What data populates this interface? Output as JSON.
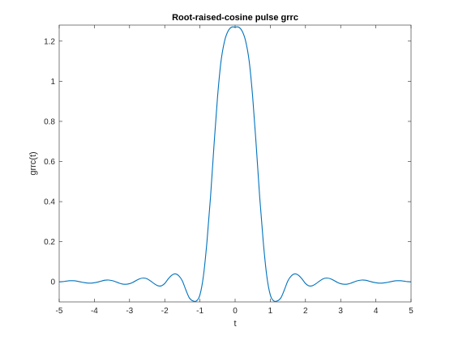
{
  "chart_data": {
    "type": "line",
    "title": "Root-raised-cosine pulse grrc",
    "xlabel": "t",
    "ylabel": "grrc(t)",
    "xlim": [
      -5,
      5
    ],
    "ylim": [
      -0.1,
      1.28
    ],
    "xticks": [
      -5,
      -4,
      -3,
      -2,
      -1,
      0,
      1,
      2,
      3,
      4,
      5
    ],
    "xtick_labels": [
      "-5",
      "-4",
      "-3",
      "-2",
      "-1",
      "0",
      "1",
      "2",
      "3",
      "4",
      "5"
    ],
    "yticks": [
      0,
      0.2,
      0.4,
      0.6,
      0.8,
      1,
      1.2
    ],
    "ytick_labels": [
      "0",
      "0.2",
      "0.4",
      "0.6",
      "0.8",
      "1",
      "1.2"
    ],
    "grid": false,
    "line_color": "#0072BD",
    "series": [
      {
        "x": [
          -5,
          -4.9,
          -4.8,
          -4.7,
          -4.6,
          -4.5,
          -4.4,
          -4.3,
          -4.2,
          -4.1,
          -4,
          -3.9,
          -3.8,
          -3.7,
          -3.6,
          -3.5,
          -3.4,
          -3.3,
          -3.2,
          -3.1,
          -3,
          -2.9,
          -2.8,
          -2.7,
          -2.6,
          -2.5,
          -2.4,
          -2.3,
          -2.2,
          -2.1,
          -2,
          -1.9,
          -1.8,
          -1.7,
          -1.6,
          -1.5,
          -1.4,
          -1.3,
          -1.2,
          -1.1,
          -1,
          -0.9,
          -0.8,
          -0.7,
          -0.6,
          -0.5,
          -0.4,
          -0.3,
          -0.2,
          -0.1,
          0,
          0.1,
          0.2,
          0.3,
          0.4,
          0.5,
          0.6,
          0.7,
          0.8,
          0.9,
          1,
          1.1,
          1.2,
          1.3,
          1.4,
          1.5,
          1.6,
          1.7,
          1.8,
          1.9,
          2,
          2.1,
          2.2,
          2.3,
          2.4,
          2.5,
          2.6,
          2.7,
          2.8,
          2.9,
          3,
          3.1,
          3.2,
          3.3,
          3.4,
          3.5,
          3.6,
          3.7,
          3.8,
          3.9,
          4,
          4.1,
          4.2,
          4.3,
          4.4,
          4.5,
          4.6,
          4.7,
          4.8,
          4.9,
          5
        ],
        "values": [
          0.0,
          0.001,
          0.0035,
          0.0055,
          0.0055,
          0.0035,
          0.0,
          -0.0035,
          -0.006,
          -0.0065,
          -0.0045,
          -0.001,
          0.004,
          0.008,
          0.009,
          0.0065,
          0.001,
          -0.006,
          -0.011,
          -0.012,
          -0.009,
          -0.002,
          0.008,
          0.016,
          0.019,
          0.015,
          0.004,
          -0.009,
          -0.019,
          -0.02,
          -0.008,
          0.015,
          0.033,
          0.04,
          0.03,
          0.005,
          -0.04,
          -0.08,
          -0.095,
          -0.095,
          -0.065,
          0.03,
          0.2,
          0.42,
          0.68,
          0.92,
          1.1,
          1.2,
          1.25,
          1.27,
          1.27,
          1.27,
          1.25,
          1.2,
          1.1,
          0.92,
          0.68,
          0.42,
          0.2,
          0.03,
          -0.065,
          -0.095,
          -0.095,
          -0.08,
          -0.04,
          0.005,
          0.03,
          0.04,
          0.033,
          0.015,
          -0.008,
          -0.02,
          -0.019,
          -0.009,
          0.004,
          0.015,
          0.019,
          0.016,
          0.008,
          -0.002,
          -0.009,
          -0.012,
          -0.011,
          -0.006,
          0.001,
          0.0065,
          0.009,
          0.008,
          0.004,
          -0.001,
          -0.0045,
          -0.0065,
          -0.006,
          -0.0035,
          0.0,
          0.0035,
          0.0055,
          0.0055,
          0.0035,
          0.001,
          0.0
        ]
      }
    ]
  }
}
